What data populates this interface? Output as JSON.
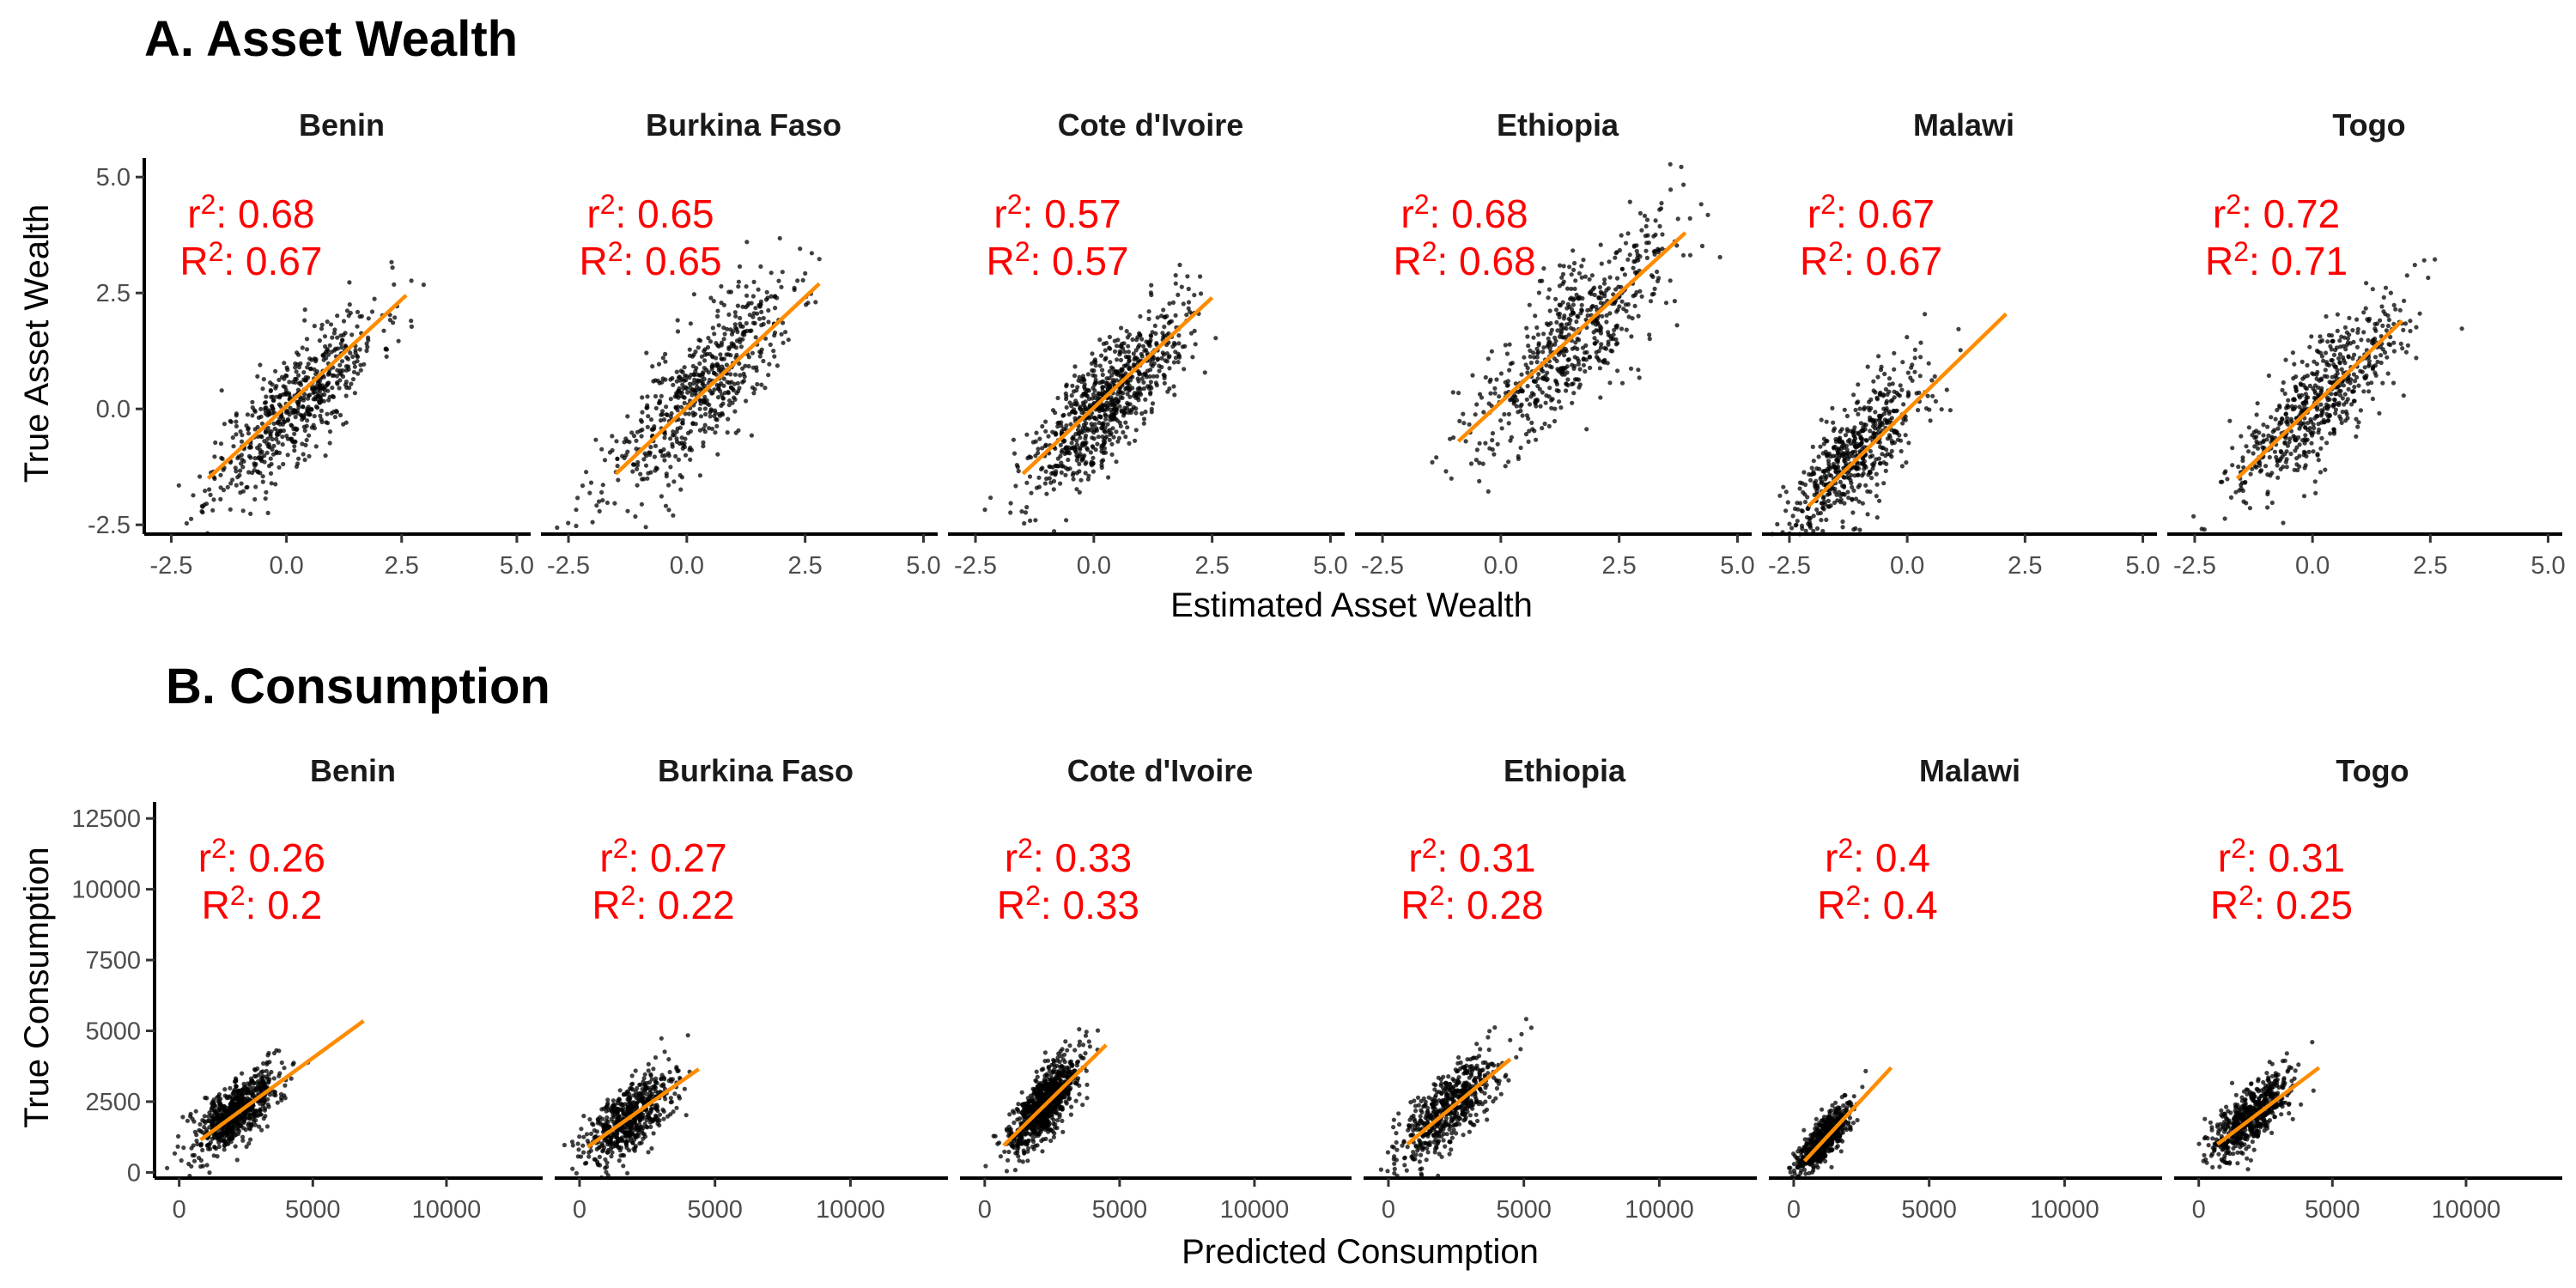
{
  "sections": [
    {
      "title": "A. Asset Wealth",
      "xlabel": "Estimated Asset Wealth",
      "ylabel": "True Asset Wealth"
    },
    {
      "title": "B. Consumption",
      "xlabel": "Predicted Consumption",
      "ylabel": "True Consumption"
    }
  ],
  "chart_data": [
    {
      "type": "scatter",
      "title": "A. Asset Wealth",
      "xlabel": "Estimated Asset Wealth",
      "ylabel": "True Asset Wealth",
      "xlim": [
        -2.9,
        5.3
      ],
      "ylim": [
        -2.7,
        5.3
      ],
      "xticks": [
        -2.5,
        0.0,
        2.5,
        5.0
      ],
      "xtick_labels": [
        "-2.5",
        "0.0",
        "2.5",
        "5.0"
      ],
      "yticks": [
        -2.5,
        0.0,
        2.5,
        5.0
      ],
      "ytick_labels": [
        "-2.5",
        "0.0",
        "2.5",
        "5.0"
      ],
      "grid": false,
      "fit_color": "#ff8c00",
      "annotation_color": "#ff0000",
      "panels": [
        {
          "name": "Benin",
          "r2_label": "r",
          "r2": "0.68",
          "R2_label": "R",
          "R2": "0.67",
          "fit": {
            "x": [
              -1.7,
              2.6
            ],
            "y": [
              -1.5,
              2.45
            ]
          },
          "cloud": {
            "center": [
              0.2,
              0.1
            ],
            "sd": [
              0.9,
              1.0
            ],
            "slope": 0.9,
            "n": 600,
            "seed": 11
          }
        },
        {
          "name": "Burkina Faso",
          "r2_label": "r",
          "r2": "0.65",
          "R2_label": "R",
          "R2": "0.65",
          "fit": {
            "x": [
              -1.5,
              2.8
            ],
            "y": [
              -1.4,
              2.7
            ]
          },
          "cloud": {
            "center": [
              0.2,
              0.3
            ],
            "sd": [
              1.0,
              1.2
            ],
            "slope": 0.95,
            "n": 600,
            "seed": 23
          }
        },
        {
          "name": "Cote d'Ivoire",
          "r2_label": "r",
          "r2": "0.57",
          "R2_label": "R",
          "R2": "0.57",
          "fit": {
            "x": [
              -1.5,
              2.5
            ],
            "y": [
              -1.4,
              2.4
            ]
          },
          "cloud": {
            "center": [
              0.3,
              0.2
            ],
            "sd": [
              0.8,
              1.0
            ],
            "slope": 0.95,
            "n": 800,
            "seed": 37
          }
        },
        {
          "name": "Ethiopia",
          "r2_label": "r",
          "r2": "0.68",
          "R2_label": "R",
          "R2": "0.68",
          "fit": {
            "x": [
              -0.9,
              3.9
            ],
            "y": [
              -0.7,
              3.8
            ]
          },
          "cloud": {
            "center": [
              1.5,
              1.5
            ],
            "sd": [
              1.1,
              1.3
            ],
            "slope": 0.95,
            "n": 600,
            "seed": 41
          }
        },
        {
          "name": "Malawi",
          "r2_label": "r",
          "r2": "0.67",
          "R2_label": "R",
          "R2": "0.67",
          "fit": {
            "x": [
              -2.1,
              2.1
            ],
            "y": [
              -2.1,
              2.05
            ]
          },
          "cloud": {
            "center": [
              -1.1,
              -1.0
            ],
            "sd": [
              0.8,
              1.0
            ],
            "slope": 1.0,
            "n": 600,
            "seed": 53
          }
        },
        {
          "name": "Togo",
          "r2_label": "r",
          "r2": "0.72",
          "R2_label": "R",
          "R2": "0.71",
          "fit": {
            "x": [
              -1.6,
              1.9
            ],
            "y": [
              -1.5,
              1.9
            ]
          },
          "cloud": {
            "center": [
              0.1,
              0.1
            ],
            "sd": [
              0.9,
              1.0
            ],
            "slope": 0.95,
            "n": 600,
            "seed": 67
          }
        }
      ]
    },
    {
      "type": "scatter",
      "title": "B. Consumption",
      "xlabel": "Predicted Consumption",
      "ylabel": "True Consumption",
      "xlim": [
        -600,
        13600
      ],
      "ylim": [
        -200,
        12900
      ],
      "xticks": [
        0,
        5000,
        10000
      ],
      "xtick_labels": [
        "0",
        "5000",
        "10000"
      ],
      "yticks": [
        0,
        2500,
        5000,
        7500,
        10000,
        12500
      ],
      "ytick_labels": [
        "0",
        "2500",
        "5000",
        "7500",
        "10000",
        "12500"
      ],
      "grid": false,
      "fit_color": "#ff8c00",
      "annotation_color": "#ff0000",
      "panels": [
        {
          "name": "Benin",
          "r2_label": "r",
          "r2": "0.26",
          "R2_label": "R",
          "R2": "0.2",
          "fit": {
            "x": [
              800,
              6900
            ],
            "y": [
              1150,
              5350
            ]
          },
          "cloud": {
            "center": [
              2100,
              2100
            ],
            "sd": [
              800,
              900
            ],
            "slope": 0.65,
            "n": 700,
            "seed": 71
          }
        },
        {
          "name": "Burkina Faso",
          "r2_label": "r",
          "r2": "0.27",
          "R2_label": "R",
          "R2": "0.22",
          "fit": {
            "x": [
              300,
              4400
            ],
            "y": [
              900,
              3650
            ]
          },
          "cloud": {
            "center": [
              1800,
              1900
            ],
            "sd": [
              900,
              1000
            ],
            "slope": 0.65,
            "n": 600,
            "seed": 83
          }
        },
        {
          "name": "Cote d'Ivoire",
          "r2_label": "r",
          "r2": "0.33",
          "R2_label": "R",
          "R2": "0.33",
          "fit": {
            "x": [
              700,
              4500
            ],
            "y": [
              950,
              4500
            ]
          },
          "cloud": {
            "center": [
              2200,
              2400
            ],
            "sd": [
              650,
              900
            ],
            "slope": 0.95,
            "n": 900,
            "seed": 97
          }
        },
        {
          "name": "Ethiopia",
          "r2_label": "r",
          "r2": "0.31",
          "R2_label": "R",
          "R2": "0.28",
          "fit": {
            "x": [
              700,
              4500
            ],
            "y": [
              1000,
              4000
            ]
          },
          "cloud": {
            "center": [
              2200,
              2300
            ],
            "sd": [
              900,
              1050
            ],
            "slope": 0.8,
            "n": 600,
            "seed": 101
          }
        },
        {
          "name": "Malawi",
          "r2_label": "r",
          "r2": "0.4",
          "R2_label": "R",
          "R2": "0.4",
          "fit": {
            "x": [
              400,
              3600
            ],
            "y": [
              400,
              3700
            ]
          },
          "cloud": {
            "center": [
              1100,
              1150
            ],
            "sd": [
              500,
              600
            ],
            "slope": 1.0,
            "n": 600,
            "seed": 113
          }
        },
        {
          "name": "Togo",
          "r2_label": "r",
          "r2": "0.31",
          "R2_label": "R",
          "R2": "0.25",
          "fit": {
            "x": [
              700,
              4500
            ],
            "y": [
              1000,
              3700
            ]
          },
          "cloud": {
            "center": [
              2000,
              2000
            ],
            "sd": [
              750,
              850
            ],
            "slope": 0.7,
            "n": 600,
            "seed": 127
          }
        }
      ]
    }
  ]
}
